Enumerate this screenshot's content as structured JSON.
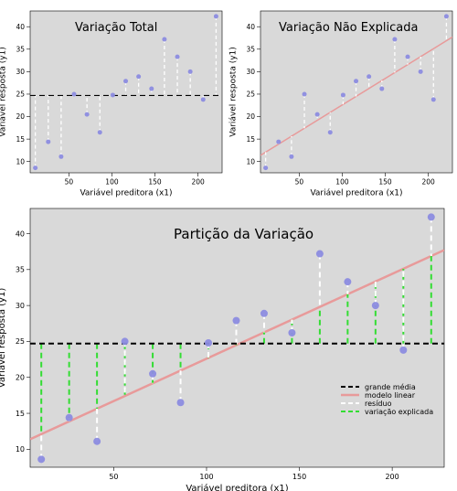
{
  "chart_data": [
    {
      "type": "scatter",
      "title": "Variação Total",
      "xlabel": "Variável preditora (x1)",
      "ylabel": "Variável resposta (y1)",
      "xlim": [
        5,
        228
      ],
      "ylim": [
        7.5,
        43.5
      ],
      "xticks": [
        50,
        100,
        150,
        200
      ],
      "yticks": [
        10,
        15,
        20,
        25,
        30,
        35,
        40
      ],
      "grid": false,
      "grand_mean": 24.7,
      "points": {
        "x": [
          11,
          26,
          41,
          56,
          71,
          86,
          101,
          116,
          131,
          146,
          161,
          176,
          191,
          206,
          221
        ],
        "y": [
          8.6,
          14.4,
          11.1,
          25.0,
          20.5,
          16.5,
          24.8,
          27.9,
          28.9,
          26.2,
          37.2,
          33.3,
          30.0,
          23.8,
          42.3
        ]
      },
      "segments": "point_to_mean"
    },
    {
      "type": "scatter",
      "title": "Variação Não Explicada",
      "xlabel": "Variável preditora (x1)",
      "ylabel": "Variável resposta (y1)",
      "xlim": [
        5,
        228
      ],
      "ylim": [
        7.5,
        43.5
      ],
      "xticks": [
        50,
        100,
        150,
        200
      ],
      "yticks": [
        10,
        15,
        20,
        25,
        30,
        35,
        40
      ],
      "grid": false,
      "regression": {
        "intercept": 10.8,
        "slope": 0.118
      },
      "points": {
        "x": [
          11,
          26,
          41,
          56,
          71,
          86,
          101,
          116,
          131,
          146,
          161,
          176,
          191,
          206,
          221
        ],
        "y": [
          8.6,
          14.4,
          11.1,
          25.0,
          20.5,
          16.5,
          24.8,
          27.9,
          28.9,
          26.2,
          37.2,
          33.3,
          30.0,
          23.8,
          42.3
        ]
      },
      "segments": "point_to_line"
    },
    {
      "type": "scatter",
      "title": "Partição da Variação",
      "xlabel": "Variável preditora (x1)",
      "ylabel": "Variável resposta (y1)",
      "xlim": [
        5,
        228
      ],
      "ylim": [
        7.5,
        43.5
      ],
      "xticks": [
        50,
        100,
        150,
        200
      ],
      "yticks": [
        10,
        15,
        20,
        25,
        30,
        35,
        40
      ],
      "grid": false,
      "grand_mean": 24.7,
      "regression": {
        "intercept": 10.8,
        "slope": 0.118
      },
      "points": {
        "x": [
          11,
          26,
          41,
          56,
          71,
          86,
          101,
          116,
          131,
          146,
          161,
          176,
          191,
          206,
          221
        ],
        "y": [
          8.6,
          14.4,
          11.1,
          25.0,
          20.5,
          16.5,
          24.8,
          27.9,
          28.9,
          26.2,
          37.2,
          33.3,
          30.0,
          23.8,
          42.3
        ]
      },
      "segments": "residual_and_explained",
      "legend_position": "bottom-right",
      "legend": [
        "grande média",
        "modelo linear",
        "resíduo",
        "variação explicada"
      ]
    }
  ],
  "colors": {
    "panel": "#d9d9d9",
    "point": "#8c8ce0",
    "mean_line": "#000000",
    "regression": "#e89a9a",
    "residual": "#ffffff",
    "explained": "#33dd33"
  }
}
